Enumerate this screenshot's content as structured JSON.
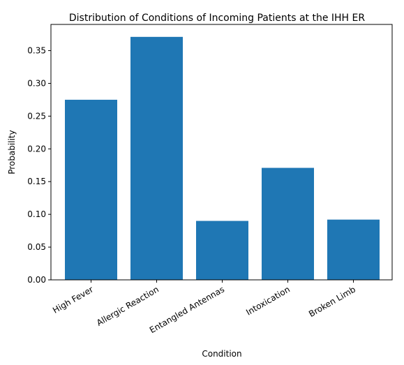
{
  "chart_data": {
    "type": "bar",
    "title": "Distribution of Conditions of Incoming Patients at the IHH ER",
    "xlabel": "Condition",
    "ylabel": "Probability",
    "categories": [
      "High Fever",
      "Allergic Reaction",
      "Entangled Antennas",
      "Intoxication",
      "Broken Limb"
    ],
    "values": [
      0.275,
      0.371,
      0.09,
      0.171,
      0.092
    ],
    "ylim": [
      0,
      0.39
    ],
    "yticks": [
      "0.00",
      "0.05",
      "0.10",
      "0.15",
      "0.20",
      "0.25",
      "0.30",
      "0.35"
    ],
    "grid": false,
    "bar_color": "#1f77b4"
  }
}
